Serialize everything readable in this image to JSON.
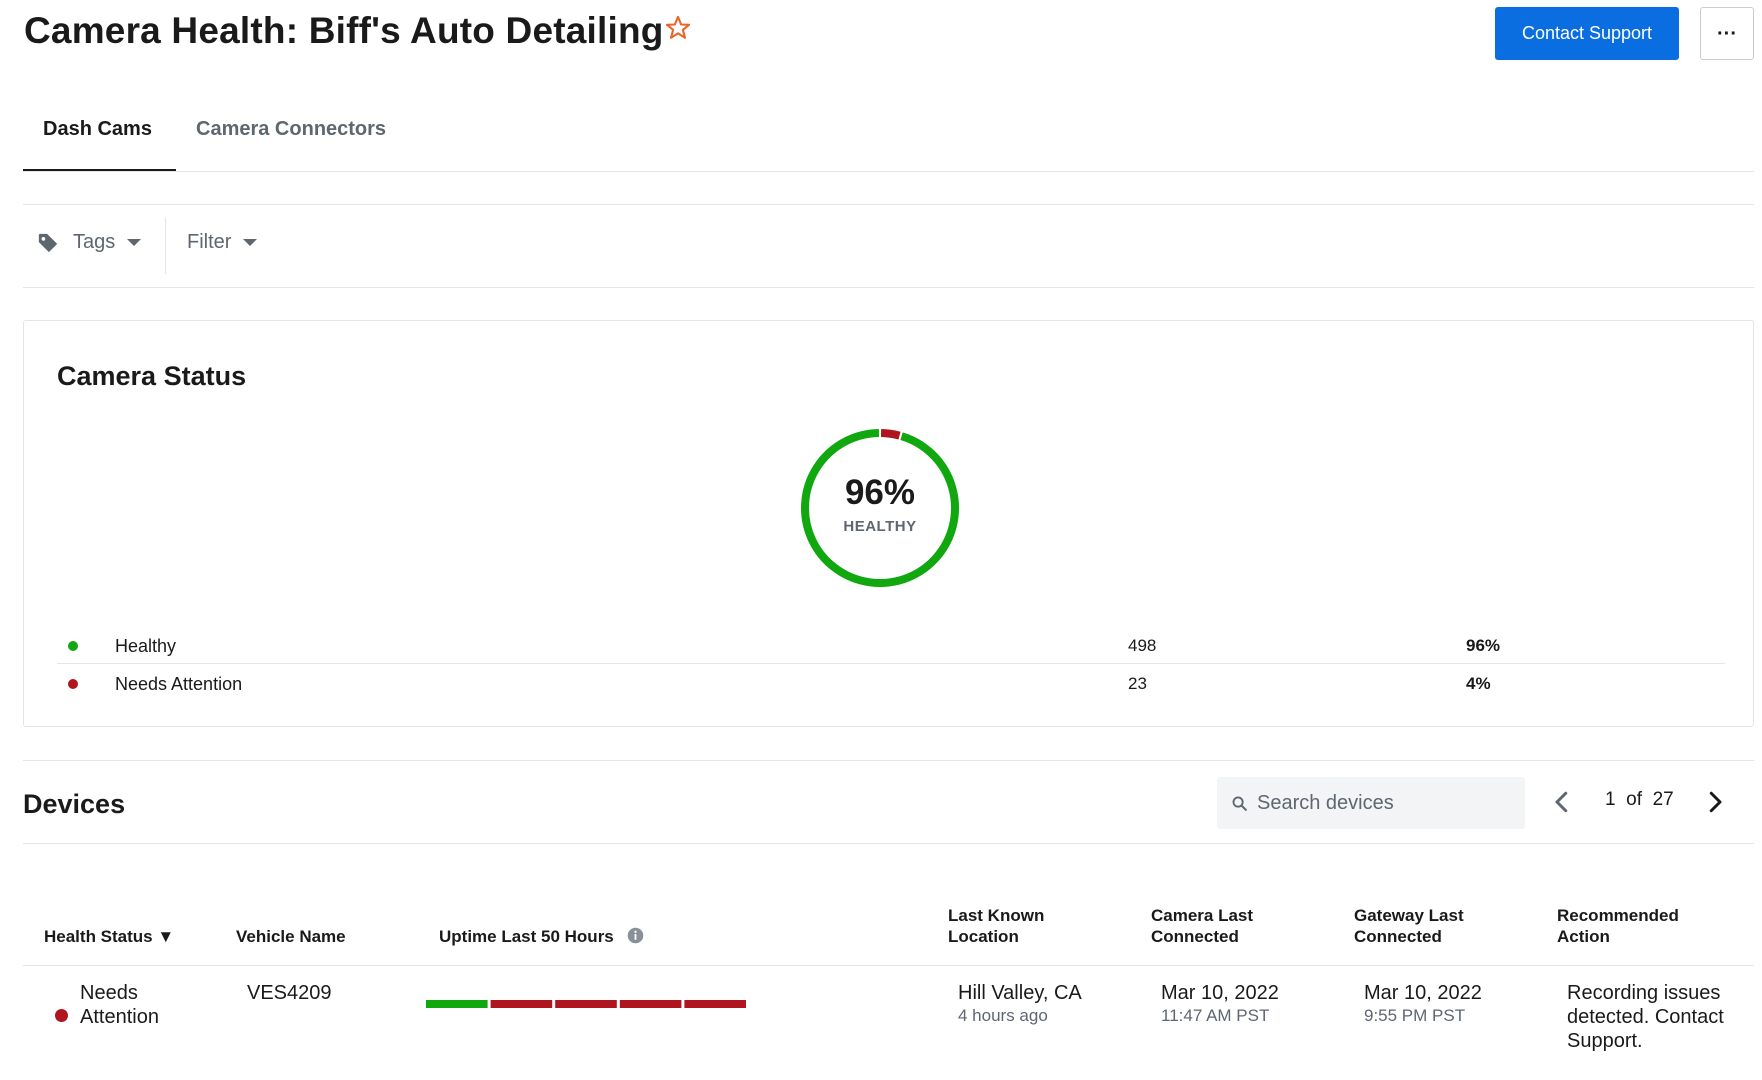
{
  "header": {
    "title": "Camera Health: Biff's Auto Detailing",
    "favorite_icon": "star-outline-icon",
    "favorite_color": "#e8652b",
    "contact_label": "Contact Support",
    "more_label": "···"
  },
  "tabs": [
    {
      "label": "Dash Cams",
      "active": true
    },
    {
      "label": "Camera Connectors",
      "active": false
    }
  ],
  "filters": {
    "tags_label": "Tags",
    "filter_label": "Filter"
  },
  "camera_status": {
    "title": "Camera Status",
    "percent_label": "96%",
    "sub_label": "HEALTHY",
    "items": [
      {
        "name": "Healthy",
        "count": "498",
        "percent": "96%",
        "color": "#10a70f"
      },
      {
        "name": "Needs Attention",
        "count": "23",
        "percent": "4%",
        "color": "#b0141e"
      }
    ]
  },
  "chart_data": {
    "type": "pie",
    "categories": [
      "Healthy",
      "Needs Attention"
    ],
    "values": [
      498,
      23
    ],
    "percents": [
      96,
      4
    ],
    "title": "Camera Status",
    "colors": [
      "#10a70f",
      "#b0141e"
    ]
  },
  "devices": {
    "title": "Devices",
    "search_placeholder": "Search devices",
    "page_current": "1",
    "page_of": "of",
    "page_total": "27",
    "columns": {
      "health": "Health Status ▼",
      "vehicle": "Vehicle Name",
      "uptime": "Uptime Last 50 Hours",
      "location": "Last Known Location",
      "camera": "Camera Last Connected",
      "gateway": "Gateway Last Connected",
      "action": "Recommended Action"
    },
    "rows": [
      {
        "health": "Needs Attention",
        "health_color": "#b0141e",
        "vehicle": "VES4209",
        "uptime_segments": [
          "healthy",
          "attention",
          "attention",
          "attention",
          "attention"
        ],
        "location": "Hill Valley, CA",
        "location_time": "4 hours ago",
        "camera_date": "Mar 10, 2022",
        "camera_time": "11:47 AM PST",
        "gateway_date": "Mar 10, 2022",
        "gateway_time": "9:55 PM PST",
        "action": "Recording issues detected. Contact Support."
      }
    ]
  },
  "colors": {
    "primary": "#0a6ee0",
    "healthy": "#10a70f",
    "attention": "#b0141e",
    "muted_text": "#5e6670"
  }
}
